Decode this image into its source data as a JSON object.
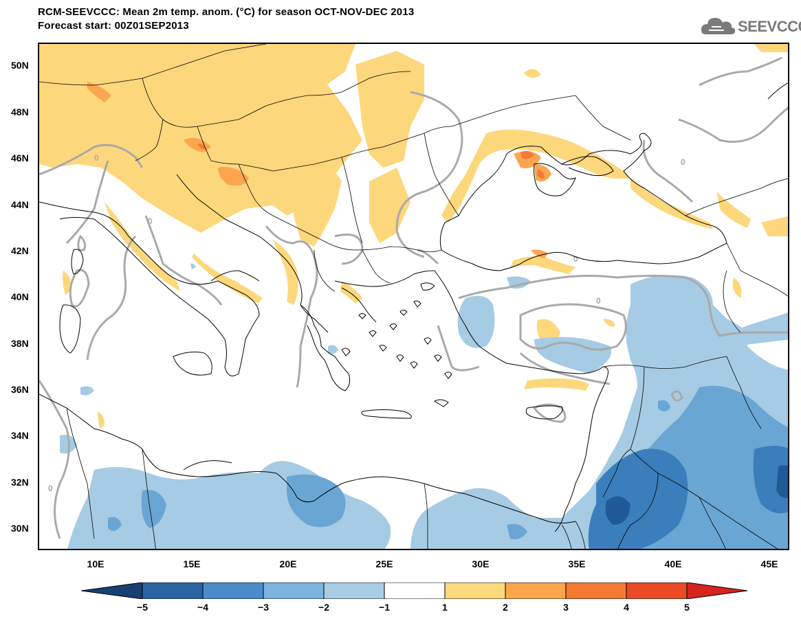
{
  "header": {
    "title": "RCM-SEEVCCC: Mean 2m temp. anom. (°C) for season OCT-NOV-DEC 2013",
    "subtitle": "Forecast start: 00Z01SEP2013"
  },
  "logo": {
    "text": "SEEVCCC",
    "icon": "cloud-logo-icon",
    "color": "#7a7a7a"
  },
  "map": {
    "lon_range": [
      7,
      46
    ],
    "lat_range": [
      29,
      51
    ],
    "lat_ticks": [
      "50N",
      "48N",
      "46N",
      "44N",
      "42N",
      "40N",
      "38N",
      "36N",
      "34N",
      "32N",
      "30N"
    ],
    "lon_ticks": [
      "10E",
      "15E",
      "20E",
      "25E",
      "30E",
      "35E",
      "40E",
      "45E"
    ],
    "zero_contour_label": "0",
    "colors": {
      "blue_-5_-4": "#1f5a96",
      "blue_-4_-3": "#3a7ebc",
      "blue_-3_-2": "#6aa6d4",
      "blue_-2_-1": "#a6cbe4",
      "white_-1_1": "#ffffff",
      "orange_1_2": "#fdd77c",
      "orange_2_3": "#fba64e",
      "orange_3_4": "#f47a36",
      "orange_4_5": "#ee4a25",
      "contour_zero": "#a9a9a9",
      "coast": "#000000"
    }
  },
  "colorbar": {
    "labels": [
      "−5",
      "−4",
      "−3",
      "−2",
      "−1",
      "1",
      "2",
      "3",
      "4",
      "5"
    ],
    "colors": [
      "#173f72",
      "#2a63a3",
      "#4a8ccb",
      "#7db3de",
      "#a8cde5",
      "#ffffff",
      "#fdd97e",
      "#fba64c",
      "#f47a34",
      "#ea4a24",
      "#d5241e"
    ]
  }
}
